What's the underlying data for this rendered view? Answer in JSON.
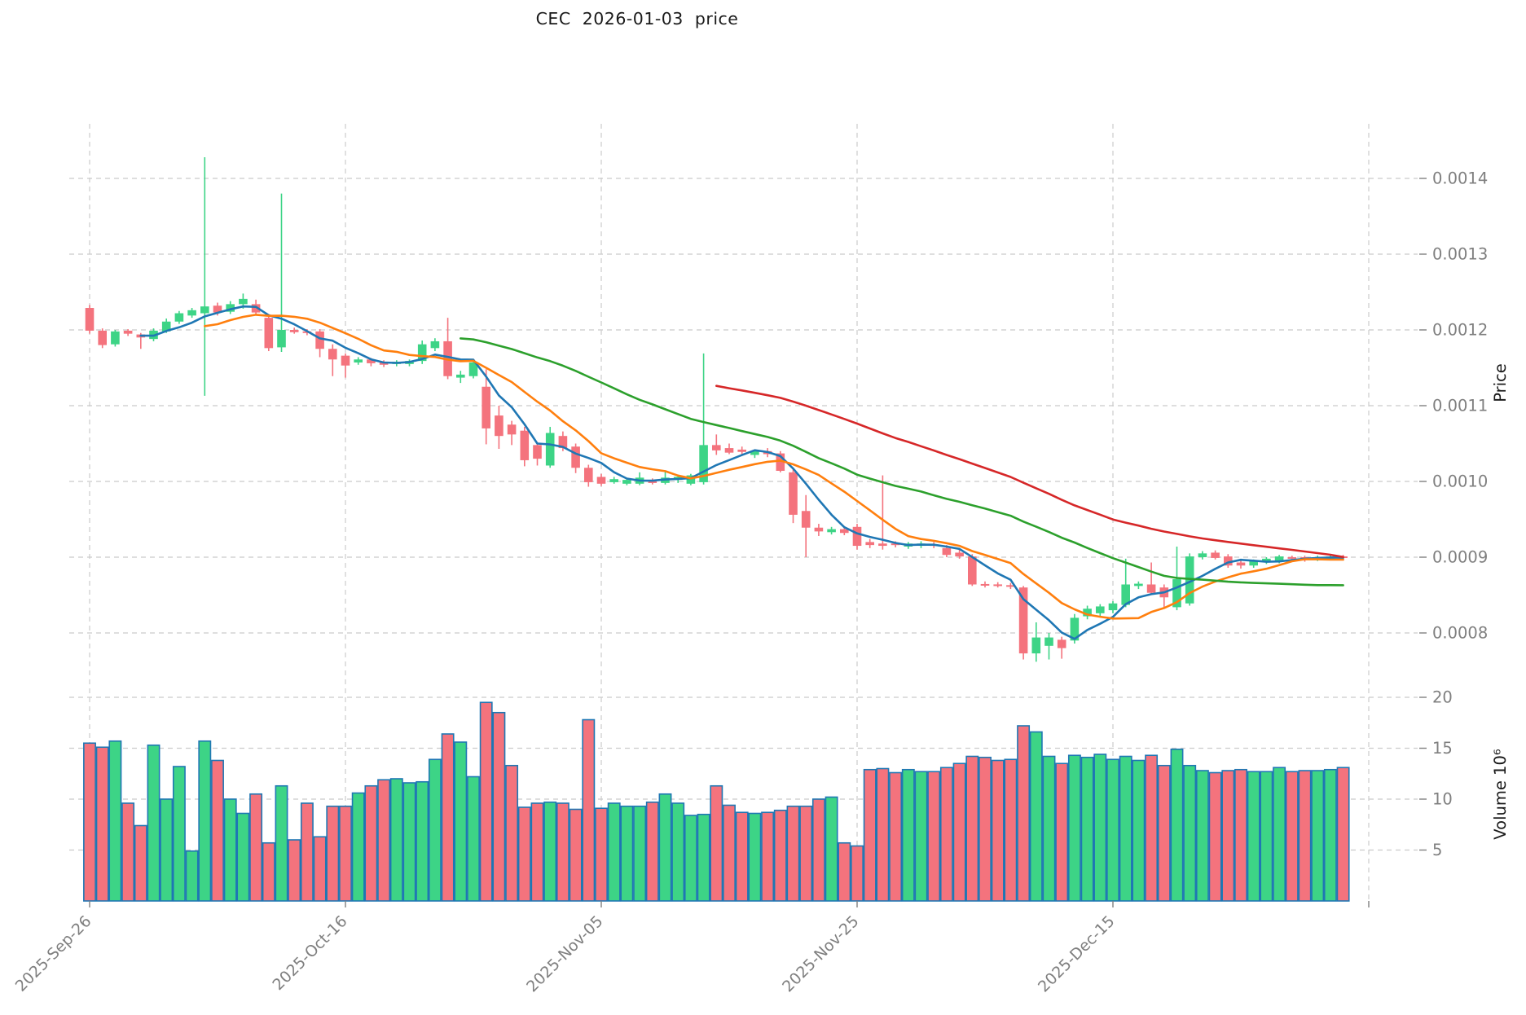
{
  "title": "CEC  2026-01-03  price",
  "colors": {
    "up": "#3dd486",
    "down": "#f4737d",
    "volume_border": "#1f77b4",
    "grid": "#cbcbcb",
    "tick_text": "#7f7f7f",
    "title_text": "#1a1a1a",
    "background": "#ffffff"
  },
  "axes": {
    "price": {
      "label": "Price",
      "ticks": [
        {
          "value": 0.0014,
          "label": "0.0014"
        },
        {
          "value": 0.0013,
          "label": "0.0013"
        },
        {
          "value": 0.0012,
          "label": "0.0012"
        },
        {
          "value": 0.0011,
          "label": "0.0011"
        },
        {
          "value": 0.001,
          "label": "0.0010"
        },
        {
          "value": 0.0009,
          "label": "0.0009"
        },
        {
          "value": 0.0008,
          "label": "0.0008"
        }
      ]
    },
    "volume": {
      "label": "Volume  10⁶",
      "ticks": [
        {
          "value": 20,
          "label": "20"
        },
        {
          "value": 15,
          "label": "15"
        },
        {
          "value": 10,
          "label": "10"
        },
        {
          "value": 5,
          "label": "5"
        }
      ]
    },
    "x": {
      "tick_labels": [
        {
          "index": 0,
          "label": "2025-Sep-26"
        },
        {
          "index": 20,
          "label": "2025-Oct-16"
        },
        {
          "index": 40,
          "label": "2025-Nov-05"
        },
        {
          "index": 60,
          "label": "2025-Nov-25"
        },
        {
          "index": 80,
          "label": "2025-Dec-15"
        },
        {
          "index": 100,
          "label": ""
        }
      ]
    }
  },
  "chart_data": {
    "type": "candlestick",
    "title": "CEC  2026-01-03  price",
    "xlabel": "",
    "ylabel_price": "Price",
    "ylabel_volume": "Volume 10⁶",
    "grid": true,
    "ylim_price": [
      0.00074,
      0.00148
    ],
    "ylim_volume": [
      0,
      21.5
    ],
    "moving_averages": [
      {
        "name": "MA5",
        "window": 5,
        "color": "#1f77b4"
      },
      {
        "name": "MA10",
        "window": 10,
        "color": "#ff7f0e"
      },
      {
        "name": "MA30",
        "window": 30,
        "color": "#2ca02c"
      },
      {
        "name": "MA50",
        "window": 50,
        "color": "#d62728"
      }
    ],
    "dates": [
      "2025-09-26",
      "2025-09-27",
      "2025-09-28",
      "2025-09-29",
      "2025-09-30",
      "2025-10-01",
      "2025-10-02",
      "2025-10-03",
      "2025-10-04",
      "2025-10-05",
      "2025-10-06",
      "2025-10-07",
      "2025-10-08",
      "2025-10-09",
      "2025-10-10",
      "2025-10-11",
      "2025-10-12",
      "2025-10-13",
      "2025-10-14",
      "2025-10-15",
      "2025-10-16",
      "2025-10-17",
      "2025-10-18",
      "2025-10-19",
      "2025-10-20",
      "2025-10-21",
      "2025-10-22",
      "2025-10-23",
      "2025-10-24",
      "2025-10-25",
      "2025-10-26",
      "2025-10-27",
      "2025-10-28",
      "2025-10-29",
      "2025-10-30",
      "2025-10-31",
      "2025-11-01",
      "2025-11-02",
      "2025-11-03",
      "2025-11-04",
      "2025-11-05",
      "2025-11-06",
      "2025-11-07",
      "2025-11-08",
      "2025-11-09",
      "2025-11-10",
      "2025-11-11",
      "2025-11-12",
      "2025-11-13",
      "2025-11-14",
      "2025-11-15",
      "2025-11-16",
      "2025-11-17",
      "2025-11-18",
      "2025-11-19",
      "2025-11-20",
      "2025-11-21",
      "2025-11-22",
      "2025-11-23",
      "2025-11-24",
      "2025-11-25",
      "2025-11-26",
      "2025-11-27",
      "2025-11-28",
      "2025-11-29",
      "2025-11-30",
      "2025-12-01",
      "2025-12-02",
      "2025-12-03",
      "2025-12-04",
      "2025-12-05",
      "2025-12-06",
      "2025-12-07",
      "2025-12-08",
      "2025-12-09",
      "2025-12-10",
      "2025-12-11",
      "2025-12-12",
      "2025-12-13",
      "2025-12-14",
      "2025-12-15",
      "2025-12-16",
      "2025-12-17",
      "2025-12-18",
      "2025-12-19",
      "2025-12-20",
      "2025-12-21",
      "2025-12-22",
      "2025-12-23",
      "2025-12-24",
      "2025-12-25",
      "2025-12-26",
      "2025-12-27",
      "2025-12-28",
      "2025-12-29",
      "2025-12-30",
      "2025-12-31",
      "2026-01-01",
      "2026-01-02"
    ],
    "open": [
      0.001229,
      0.001199,
      0.001181,
      0.001199,
      0.001194,
      0.001188,
      0.001198,
      0.001211,
      0.001219,
      0.001222,
      0.001232,
      0.001224,
      0.001234,
      0.001234,
      0.001216,
      0.001177,
      0.0012,
      0.001198,
      0.001198,
      0.001175,
      0.001166,
      0.001157,
      0.001161,
      0.001158,
      0.001155,
      0.001155,
      0.001159,
      0.001176,
      0.001185,
      0.001137,
      0.001139,
      0.001125,
      0.001087,
      0.001075,
      0.001067,
      0.001048,
      0.001021,
      0.00106,
      0.001046,
      0.001018,
      0.001006,
      0.000999,
      0.000997,
      0.000997,
      0.001,
      0.000998,
      0.001002,
      0.000997,
      0.000999,
      0.001048,
      0.001044,
      0.001042,
      0.001035,
      0.00104,
      0.001037,
      0.001012,
      0.000961,
      0.000939,
      0.000933,
      0.000937,
      0.00094,
      0.00092,
      0.000918,
      0.000918,
      0.000914,
      0.000915,
      0.000917,
      0.000912,
      0.000906,
      0.000901,
      0.000864,
      0.000864,
      0.000863,
      0.00086,
      0.000773,
      0.000783,
      0.000791,
      0.00079,
      0.000822,
      0.000826,
      0.00083,
      0.000837,
      0.000862,
      0.000864,
      0.00086,
      0.000834,
      0.000839,
      0.0009,
      0.000906,
      0.000901,
      0.000893,
      0.000889,
      0.000894,
      0.000895,
      0.0009,
      0.0009,
      0.000897,
      0.000898,
      0.000901
    ],
    "high": [
      0.001233,
      0.001202,
      0.0012,
      0.001201,
      0.001196,
      0.001202,
      0.001215,
      0.001225,
      0.001229,
      0.001428,
      0.001236,
      0.001238,
      0.001248,
      0.00124,
      0.00122,
      0.00138,
      0.001203,
      0.001201,
      0.001201,
      0.001181,
      0.001169,
      0.001164,
      0.001163,
      0.00116,
      0.00116,
      0.001161,
      0.001186,
      0.001189,
      0.001216,
      0.001146,
      0.001158,
      0.001148,
      0.0011,
      0.00108,
      0.001072,
      0.001052,
      0.001072,
      0.001066,
      0.00105,
      0.001022,
      0.00101,
      0.001006,
      0.001004,
      0.001012,
      0.001004,
      0.001013,
      0.001009,
      0.00101,
      0.001169,
      0.001062,
      0.00105,
      0.001046,
      0.001042,
      0.001044,
      0.00104,
      0.001016,
      0.000982,
      0.000944,
      0.00094,
      0.000941,
      0.000944,
      0.000924,
      0.001008,
      0.000921,
      0.00092,
      0.000921,
      0.00092,
      0.000916,
      0.00091,
      0.000904,
      0.000868,
      0.000867,
      0.000866,
      0.000862,
      0.000814,
      0.0008,
      0.000795,
      0.000825,
      0.000836,
      0.000838,
      0.000842,
      0.000898,
      0.000868,
      0.000893,
      0.000864,
      0.000914,
      0.000905,
      0.000908,
      0.000909,
      0.000904,
      0.000896,
      0.000897,
      0.0009,
      0.000903,
      0.000902,
      0.000902,
      0.000902,
      0.000903,
      0.000903
    ],
    "low": [
      0.001195,
      0.001176,
      0.001178,
      0.001192,
      0.001175,
      0.001185,
      0.001196,
      0.001208,
      0.001216,
      0.001113,
      0.001219,
      0.001221,
      0.001228,
      0.00122,
      0.001172,
      0.001171,
      0.001195,
      0.001193,
      0.001164,
      0.001139,
      0.001137,
      0.001154,
      0.001152,
      0.001151,
      0.001152,
      0.001152,
      0.001155,
      0.001172,
      0.001135,
      0.00113,
      0.001136,
      0.001049,
      0.001043,
      0.001048,
      0.00102,
      0.001021,
      0.001018,
      0.00104,
      0.001011,
      0.000993,
      0.000994,
      0.000997,
      0.000995,
      0.000995,
      0.000996,
      0.000996,
      0.000998,
      0.000995,
      0.000996,
      0.001035,
      0.001036,
      0.001034,
      0.001031,
      0.001032,
      0.001012,
      0.000945,
      0.0009,
      0.000928,
      0.00093,
      0.000929,
      0.00091,
      0.000912,
      0.00091,
      0.000913,
      0.000911,
      0.000912,
      0.000912,
      0.0009,
      0.000898,
      0.000862,
      0.00086,
      0.00086,
      0.000858,
      0.000765,
      0.000762,
      0.000765,
      0.000766,
      0.000786,
      0.000818,
      0.000822,
      0.000826,
      0.000834,
      0.000858,
      0.00085,
      0.000834,
      0.00083,
      0.000836,
      0.000897,
      0.000897,
      0.000886,
      0.000885,
      0.000886,
      0.000891,
      0.000892,
      0.000894,
      0.000894,
      0.000895,
      0.000896,
      0.000896
    ],
    "close": [
      0.001199,
      0.00118,
      0.001198,
      0.001195,
      0.00119,
      0.001199,
      0.001211,
      0.001222,
      0.001226,
      0.001231,
      0.001223,
      0.001234,
      0.001241,
      0.001223,
      0.001176,
      0.0012,
      0.001197,
      0.001196,
      0.001175,
      0.001161,
      0.001153,
      0.001161,
      0.001156,
      0.001154,
      0.001158,
      0.001159,
      0.001181,
      0.001185,
      0.001139,
      0.001141,
      0.001157,
      0.00107,
      0.00106,
      0.001062,
      0.001028,
      0.00103,
      0.001064,
      0.001044,
      0.001018,
      0.000999,
      0.000997,
      0.001003,
      0.001002,
      0.001005,
      0.000998,
      0.001005,
      0.001006,
      0.001008,
      0.001048,
      0.001041,
      0.001038,
      0.001039,
      0.00104,
      0.001036,
      0.001014,
      0.000956,
      0.000939,
      0.000934,
      0.000937,
      0.000932,
      0.000915,
      0.000916,
      0.000915,
      0.000916,
      0.000918,
      0.000918,
      0.000915,
      0.000903,
      0.000901,
      0.000864,
      0.000863,
      0.000862,
      0.000861,
      0.000773,
      0.000794,
      0.000794,
      0.00078,
      0.00082,
      0.000832,
      0.000835,
      0.000839,
      0.000864,
      0.000865,
      0.000853,
      0.000847,
      0.000871,
      0.000901,
      0.000905,
      0.000899,
      0.000889,
      0.000889,
      0.000895,
      0.000898,
      0.000901,
      0.000898,
      0.000898,
      0.0009,
      0.000901,
      0.000899
    ],
    "volume_millions": [
      15.5,
      15.1,
      15.7,
      9.6,
      7.4,
      15.3,
      10.0,
      13.2,
      4.9,
      15.7,
      13.8,
      10.0,
      8.6,
      10.5,
      5.7,
      11.3,
      6.0,
      9.6,
      6.3,
      9.3,
      9.3,
      10.6,
      11.3,
      11.9,
      12.0,
      11.6,
      11.7,
      13.9,
      16.4,
      15.6,
      12.2,
      19.5,
      18.5,
      13.3,
      9.2,
      9.6,
      9.7,
      9.6,
      9.0,
      17.8,
      9.1,
      9.6,
      9.3,
      9.3,
      9.7,
      10.5,
      9.6,
      8.4,
      8.5,
      11.3,
      9.4,
      8.7,
      8.6,
      8.7,
      8.9,
      9.3,
      9.3,
      10.0,
      10.2,
      5.7,
      5.4,
      12.9,
      13.0,
      12.6,
      12.9,
      12.7,
      12.7,
      13.1,
      13.5,
      14.2,
      14.1,
      13.8,
      13.9,
      17.2,
      16.6,
      14.2,
      13.5,
      14.3,
      14.1,
      14.4,
      13.9,
      14.2,
      13.8,
      14.3,
      13.3,
      14.9,
      13.3,
      12.8,
      12.6,
      12.8,
      12.9,
      12.7,
      12.7,
      13.1,
      12.7,
      12.8,
      12.8,
      12.9,
      13.1
    ]
  }
}
